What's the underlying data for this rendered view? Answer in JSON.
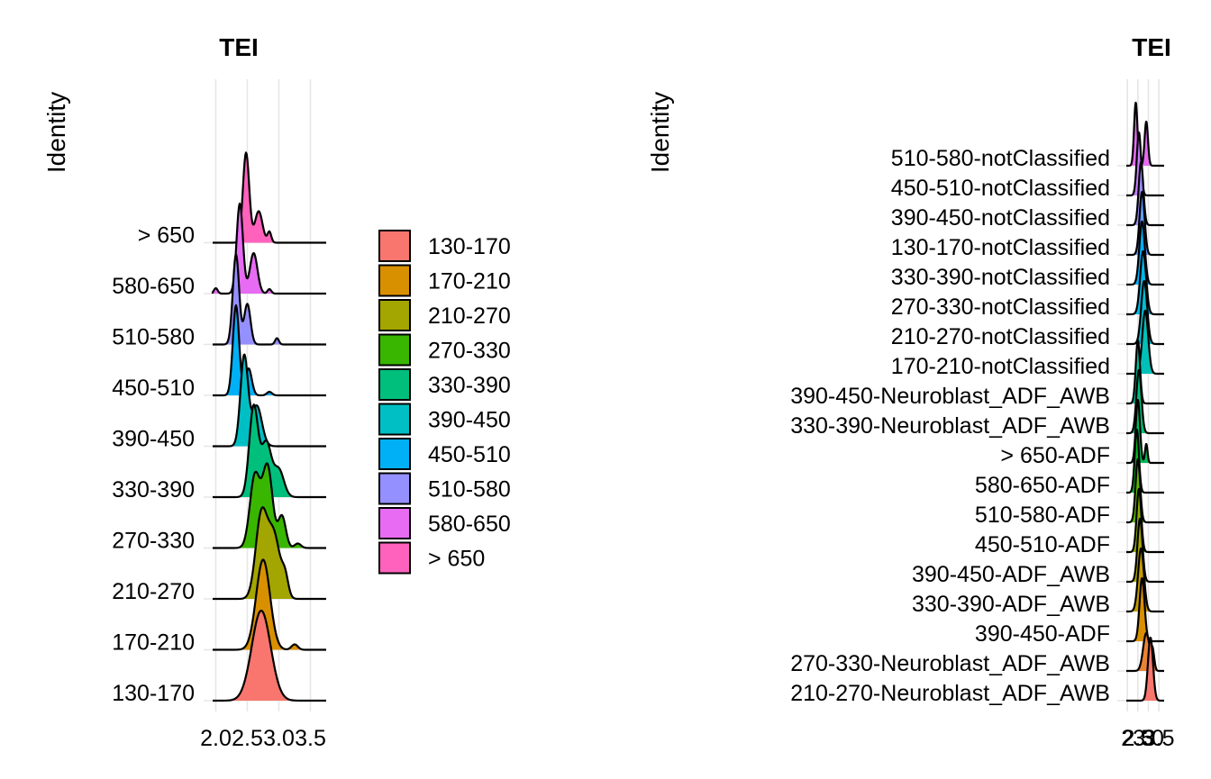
{
  "chart_data": [
    {
      "type": "ridgeline",
      "title": "TEI",
      "ylabel": "Identity",
      "xlabel": "",
      "x_ticks": [
        "2.0",
        "2.5",
        "3.0",
        "3.5"
      ],
      "x_tick_values": [
        2.0,
        2.5,
        3.0,
        3.5
      ],
      "grid": true,
      "legend_position": "right",
      "legend": [
        {
          "label": "130-170",
          "color": "#F8766D"
        },
        {
          "label": "170-210",
          "color": "#D89000"
        },
        {
          "label": "210-270",
          "color": "#A3A500"
        },
        {
          "label": "270-330",
          "color": "#39B600"
        },
        {
          "label": "330-390",
          "color": "#00BF7D"
        },
        {
          "label": "390-450",
          "color": "#00BFC4"
        },
        {
          "label": "450-510",
          "color": "#00B0F6"
        },
        {
          "label": "510-580",
          "color": "#9590FF"
        },
        {
          "label": "580-650",
          "color": "#E76BF3"
        },
        {
          "label": "> 650",
          "color": "#FF62BC"
        }
      ],
      "series": [
        {
          "name": "130-170",
          "color": "#F8766D",
          "peaks": [
            [
              2.72,
              0.15,
              1.0
            ]
          ]
        },
        {
          "name": "170-210",
          "color": "#D89000",
          "peaks": [
            [
              2.75,
              0.11,
              1.0
            ],
            [
              3.25,
              0.05,
              0.06
            ]
          ]
        },
        {
          "name": "210-270",
          "color": "#A3A500",
          "peaks": [
            [
              2.72,
              0.09,
              0.9
            ],
            [
              2.92,
              0.1,
              0.7
            ],
            [
              3.1,
              0.05,
              0.2
            ]
          ]
        },
        {
          "name": "270-330",
          "color": "#39B600",
          "peaks": [
            [
              2.62,
              0.08,
              0.8
            ],
            [
              2.82,
              0.08,
              0.9
            ],
            [
              3.05,
              0.06,
              0.35
            ],
            [
              3.3,
              0.05,
              0.05
            ]
          ]
        },
        {
          "name": "330-390",
          "color": "#00BF7D",
          "peaks": [
            [
              2.6,
              0.07,
              1.0
            ],
            [
              2.8,
              0.08,
              0.6
            ],
            [
              3.0,
              0.08,
              0.3
            ]
          ]
        },
        {
          "name": "390-450",
          "color": "#00BFC4",
          "peaks": [
            [
              2.45,
              0.06,
              1.0
            ],
            [
              2.65,
              0.08,
              0.45
            ]
          ]
        },
        {
          "name": "450-510",
          "color": "#00B0F6",
          "peaks": [
            [
              2.32,
              0.05,
              1.0
            ],
            [
              2.52,
              0.05,
              0.3
            ],
            [
              2.85,
              0.04,
              0.04
            ]
          ]
        },
        {
          "name": "510-580",
          "color": "#9590FF",
          "peaks": [
            [
              2.32,
              0.05,
              1.0
            ],
            [
              2.5,
              0.05,
              0.45
            ],
            [
              2.97,
              0.03,
              0.07
            ]
          ]
        },
        {
          "name": "580-650",
          "color": "#E76BF3",
          "peaks": [
            [
              2.0,
              0.03,
              0.06
            ],
            [
              2.38,
              0.05,
              1.0
            ],
            [
              2.6,
              0.06,
              0.45
            ],
            [
              2.85,
              0.03,
              0.05
            ]
          ]
        },
        {
          "name": "> 650",
          "color": "#FF62BC",
          "peaks": [
            [
              2.48,
              0.05,
              1.0
            ],
            [
              2.68,
              0.06,
              0.35
            ],
            [
              2.85,
              0.03,
              0.12
            ]
          ]
        }
      ]
    },
    {
      "type": "ridgeline",
      "title": "TEI",
      "ylabel": "Identity",
      "xlabel": "",
      "x_ticks": [
        "2",
        "3",
        "2.5",
        "3.0",
        "3.5"
      ],
      "x_tick_values": [
        2.0,
        3.0,
        2.5,
        3.0,
        3.5
      ],
      "grid": true,
      "series": [
        {
          "name": "210-270-Neuroblast_ADF_AWB",
          "color": "#F8766D",
          "peaks": [
            [
              3.1,
              0.12,
              1.0
            ]
          ]
        },
        {
          "name": "270-330-Neuroblast_ADF_AWB",
          "color": "#EB8335",
          "peaks": [
            [
              2.9,
              0.15,
              0.6
            ],
            [
              3.2,
              0.08,
              0.3
            ]
          ]
        },
        {
          "name": "390-450-ADF",
          "color": "#DA8F00",
          "peaks": [
            [
              2.7,
              0.12,
              1.0
            ]
          ]
        },
        {
          "name": "330-390-ADF_AWB",
          "color": "#C49A00",
          "peaks": [
            [
              2.65,
              0.14,
              1.0
            ]
          ]
        },
        {
          "name": "390-450-ADF_AWB",
          "color": "#A9A400",
          "peaks": [
            [
              2.6,
              0.12,
              1.0
            ]
          ]
        },
        {
          "name": "450-510-ADF",
          "color": "#8AAB00",
          "peaks": [
            [
              2.55,
              0.11,
              1.0
            ]
          ]
        },
        {
          "name": "510-580-ADF",
          "color": "#5EB300",
          "peaks": [
            [
              2.5,
              0.11,
              1.0
            ]
          ]
        },
        {
          "name": "580-650-ADF",
          "color": "#00B81F",
          "peaks": [
            [
              2.45,
              0.1,
              1.0
            ]
          ]
        },
        {
          "name": "> 650-ADF",
          "color": "#00BC59",
          "peaks": [
            [
              2.5,
              0.1,
              1.0
            ],
            [
              2.9,
              0.06,
              0.3
            ]
          ]
        },
        {
          "name": "330-390-Neuroblast_ADF_AWB",
          "color": "#00BF7D",
          "peaks": [
            [
              2.55,
              0.12,
              1.0
            ]
          ]
        },
        {
          "name": "390-450-Neuroblast_ADF_AWB",
          "color": "#00C19C",
          "peaks": [
            [
              2.5,
              0.1,
              1.0
            ]
          ]
        },
        {
          "name": "170-210-notClassified",
          "color": "#00C0B8",
          "peaks": [
            [
              2.85,
              0.14,
              1.0
            ]
          ]
        },
        {
          "name": "210-270-notClassified",
          "color": "#00BDD0",
          "peaks": [
            [
              2.8,
              0.14,
              1.0
            ]
          ]
        },
        {
          "name": "270-330-notClassified",
          "color": "#00B7E8",
          "peaks": [
            [
              2.75,
              0.14,
              1.0
            ]
          ]
        },
        {
          "name": "330-390-notClassified",
          "color": "#00AEFA",
          "peaks": [
            [
              2.7,
              0.13,
              1.0
            ]
          ]
        },
        {
          "name": "130-170-notClassified",
          "color": "#619CFF",
          "peaks": [
            [
              2.7,
              0.12,
              1.0
            ]
          ]
        },
        {
          "name": "390-450-notClassified",
          "color": "#9C8DFF",
          "peaks": [
            [
              2.65,
              0.11,
              1.0
            ]
          ]
        },
        {
          "name": "450-510-notClassified",
          "color": "#C77CFF",
          "peaks": [
            [
              2.55,
              0.1,
              1.0
            ]
          ]
        },
        {
          "name": "510-580-notClassified",
          "color": "#E56CF1",
          "peaks": [
            [
              2.4,
              0.08,
              1.0
            ],
            [
              2.9,
              0.08,
              0.7
            ]
          ]
        }
      ]
    }
  ]
}
